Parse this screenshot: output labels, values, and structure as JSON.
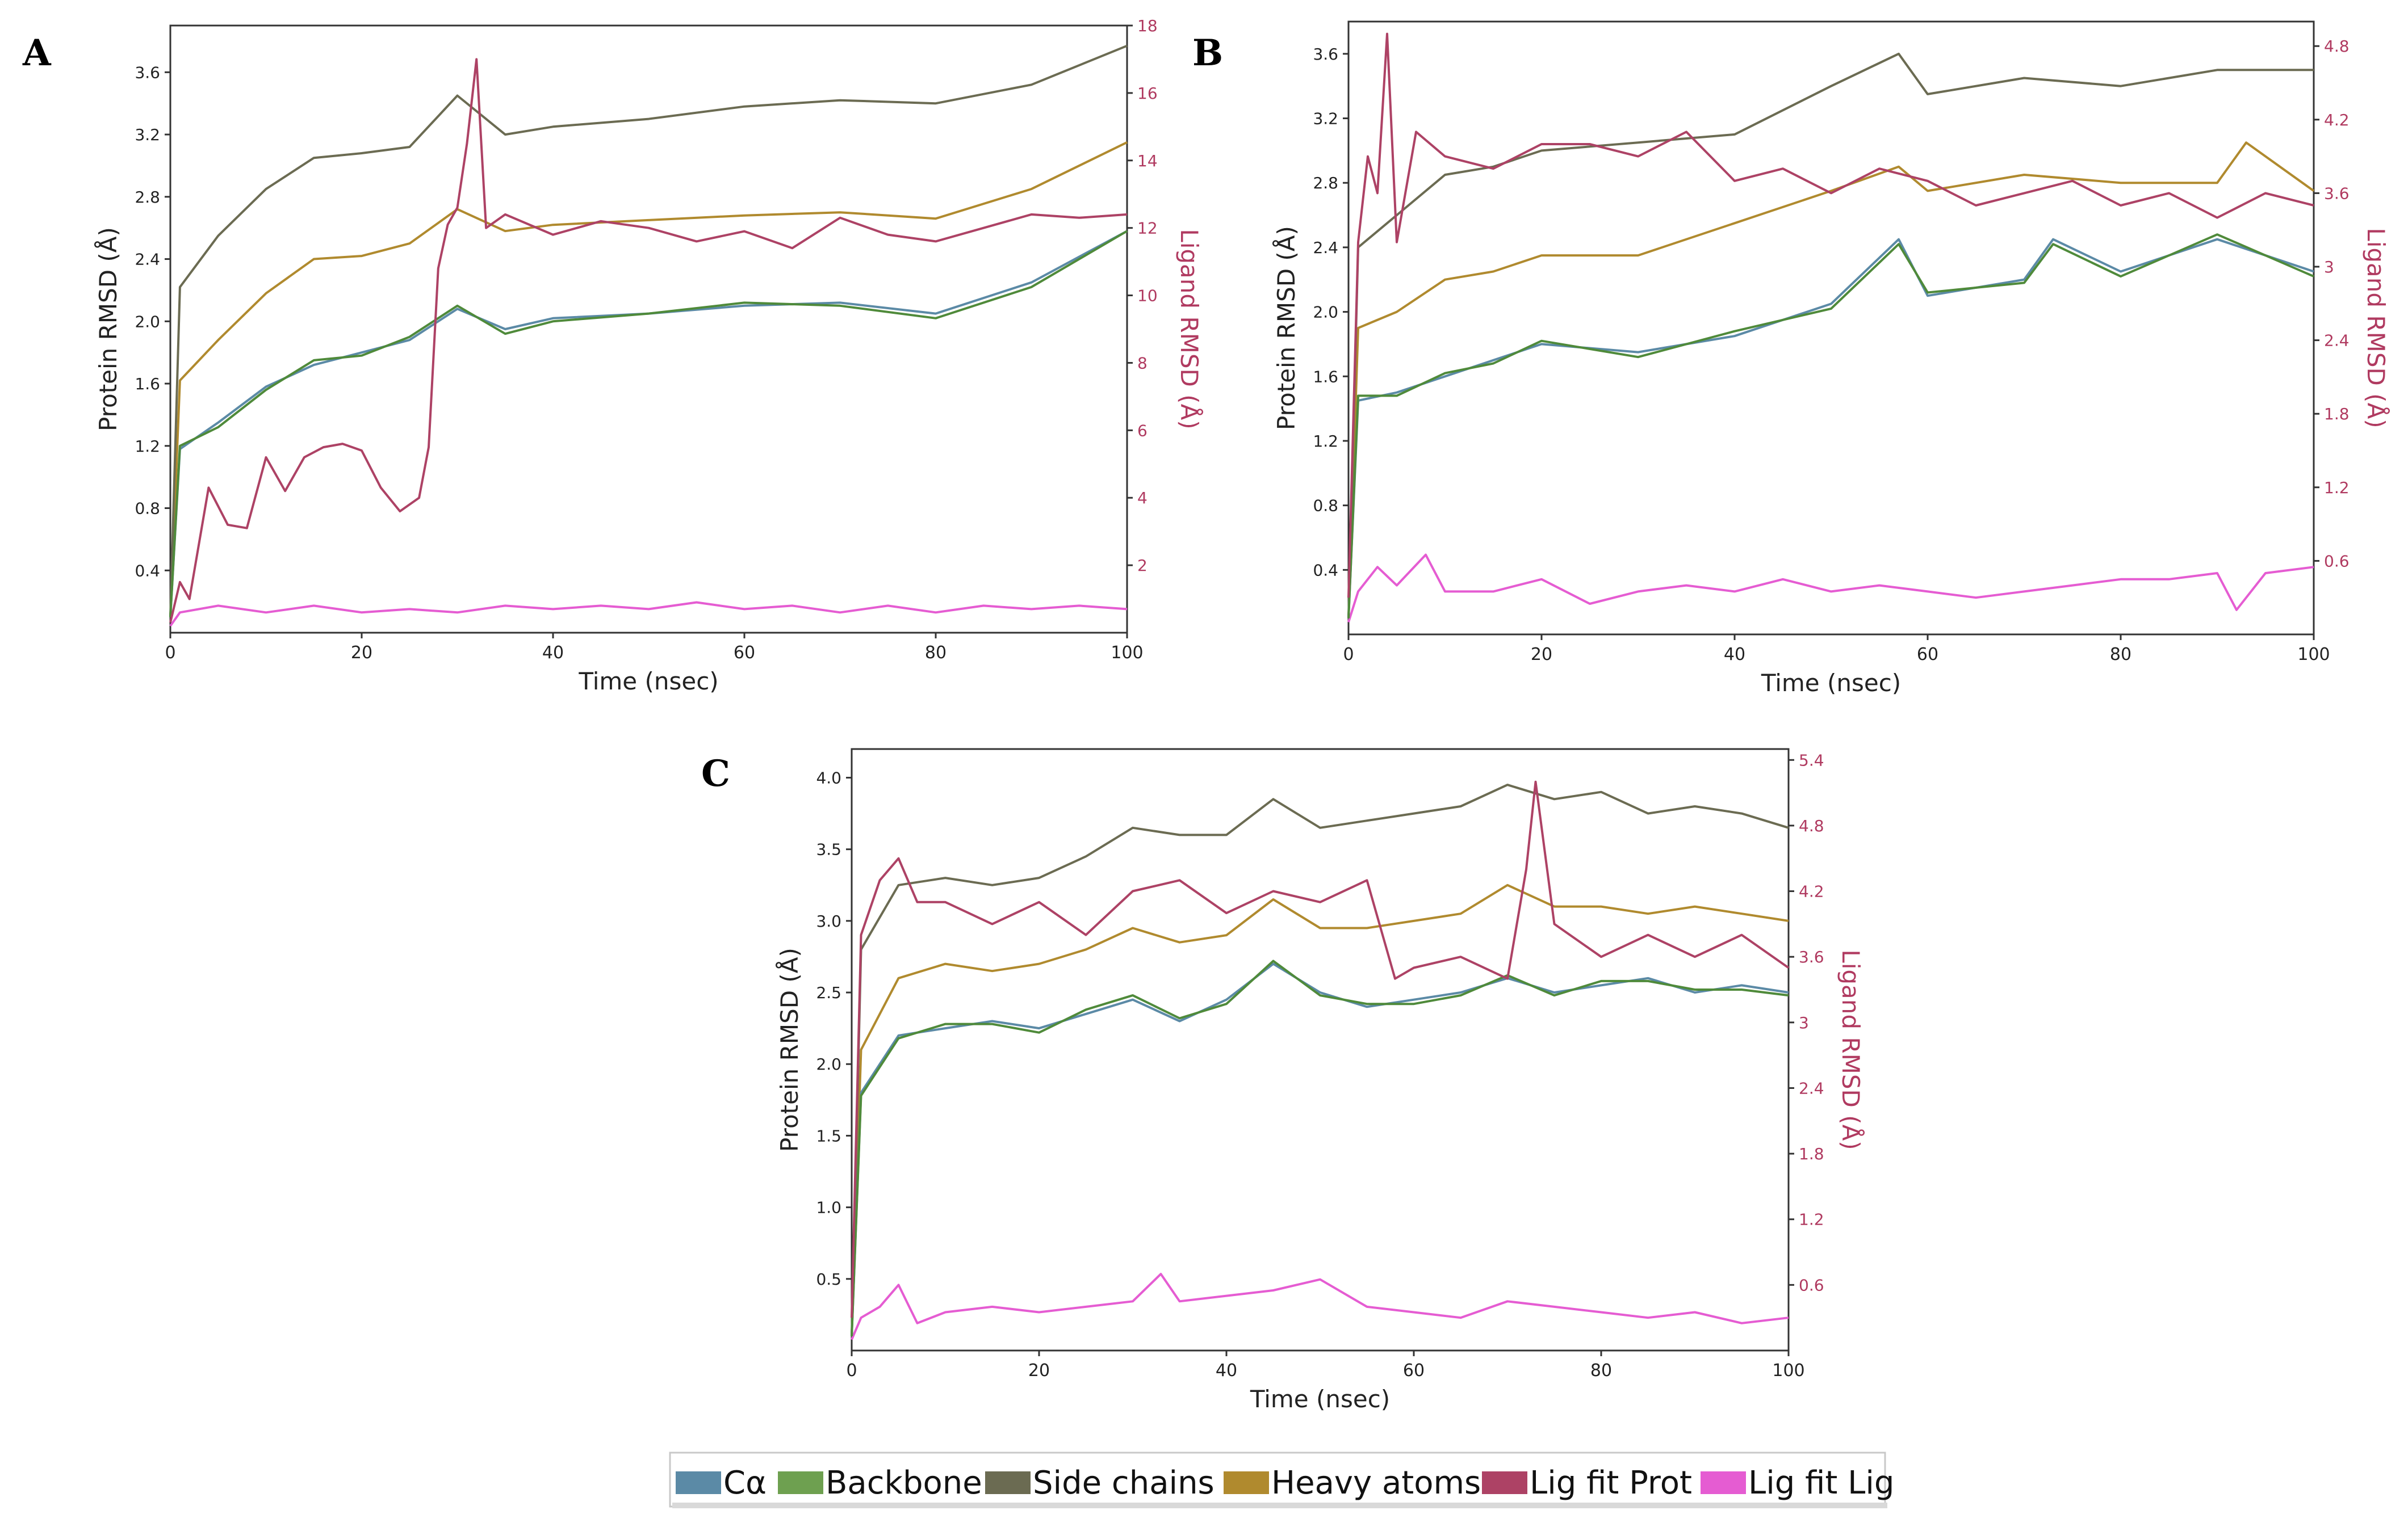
{
  "chart_data": [
    {
      "type": "line",
      "panel": "A",
      "xlabel": "Time (nsec)",
      "ylabel": "Protein RMSD (Å)",
      "y2label": "Ligand RMSD (Å)",
      "xlim": [
        0,
        100
      ],
      "ylim": [
        0,
        3.9
      ],
      "y2lim": [
        0,
        18
      ],
      "xticks": [
        0,
        20,
        40,
        60,
        80,
        100
      ],
      "yticks": [
        0.4,
        0.8,
        1.2,
        1.6,
        2.0,
        2.4,
        2.8,
        3.2,
        3.6
      ],
      "y2ticks": [
        2,
        4,
        6,
        8,
        10,
        12,
        14,
        16,
        18
      ],
      "series": [
        {
          "name": "Cα",
          "axis": "left",
          "x": [
            0,
            1,
            5,
            10,
            15,
            20,
            25,
            30,
            35,
            40,
            50,
            60,
            70,
            80,
            90,
            100
          ],
          "values": [
            0.1,
            1.18,
            1.35,
            1.58,
            1.72,
            1.8,
            1.88,
            2.08,
            1.95,
            2.02,
            2.05,
            2.1,
            2.12,
            2.05,
            2.25,
            2.58
          ]
        },
        {
          "name": "Backbone",
          "axis": "left",
          "x": [
            0,
            1,
            5,
            10,
            15,
            20,
            25,
            30,
            35,
            40,
            50,
            60,
            70,
            80,
            90,
            100
          ],
          "values": [
            0.1,
            1.2,
            1.32,
            1.56,
            1.75,
            1.78,
            1.9,
            2.1,
            1.92,
            2.0,
            2.05,
            2.12,
            2.1,
            2.02,
            2.22,
            2.58
          ]
        },
        {
          "name": "Side chains",
          "axis": "left",
          "x": [
            0,
            1,
            5,
            10,
            15,
            20,
            25,
            30,
            35,
            40,
            50,
            60,
            70,
            80,
            90,
            100
          ],
          "values": [
            0.1,
            2.22,
            2.55,
            2.85,
            3.05,
            3.08,
            3.12,
            3.45,
            3.2,
            3.25,
            3.3,
            3.38,
            3.42,
            3.4,
            3.52,
            3.77
          ]
        },
        {
          "name": "Heavy atoms",
          "axis": "left",
          "x": [
            0,
            1,
            5,
            10,
            15,
            20,
            25,
            30,
            35,
            40,
            50,
            60,
            70,
            80,
            90,
            100
          ],
          "values": [
            0.1,
            1.62,
            1.88,
            2.18,
            2.4,
            2.42,
            2.5,
            2.72,
            2.58,
            2.62,
            2.65,
            2.68,
            2.7,
            2.66,
            2.85,
            3.15
          ]
        },
        {
          "name": "Lig fit Prot",
          "axis": "right",
          "x": [
            0,
            1,
            2,
            4,
            6,
            8,
            10,
            12,
            14,
            16,
            18,
            20,
            22,
            24,
            26,
            27,
            28,
            29,
            30,
            31,
            32,
            33,
            35,
            40,
            45,
            50,
            55,
            60,
            65,
            70,
            75,
            80,
            85,
            90,
            95,
            100
          ],
          "values": [
            0.3,
            1.5,
            1.0,
            4.3,
            3.2,
            3.1,
            5.2,
            4.2,
            5.2,
            5.5,
            5.6,
            5.4,
            4.3,
            3.6,
            4.0,
            5.5,
            10.8,
            12.1,
            12.6,
            14.5,
            17.0,
            12.0,
            12.4,
            11.8,
            12.2,
            12.0,
            11.6,
            11.9,
            11.4,
            12.3,
            11.8,
            11.6,
            12.0,
            12.4,
            12.3,
            12.4
          ]
        },
        {
          "name": "Lig fit Lig",
          "axis": "right",
          "x": [
            0,
            1,
            5,
            10,
            15,
            20,
            25,
            30,
            35,
            40,
            45,
            50,
            55,
            60,
            65,
            70,
            75,
            80,
            85,
            90,
            95,
            100
          ],
          "values": [
            0.2,
            0.6,
            0.8,
            0.6,
            0.8,
            0.6,
            0.7,
            0.6,
            0.8,
            0.7,
            0.8,
            0.7,
            0.9,
            0.7,
            0.8,
            0.6,
            0.8,
            0.6,
            0.8,
            0.7,
            0.8,
            0.7
          ]
        }
      ]
    },
    {
      "type": "line",
      "panel": "B",
      "xlabel": "Time (nsec)",
      "ylabel": "Protein RMSD (Å)",
      "y2label": "Ligand RMSD (Å)",
      "xlim": [
        0,
        100
      ],
      "ylim": [
        0,
        3.8
      ],
      "y2lim": [
        0,
        5.0
      ],
      "xticks": [
        0,
        20,
        40,
        60,
        80,
        100
      ],
      "yticks": [
        0.4,
        0.8,
        1.2,
        1.6,
        2.0,
        2.4,
        2.8,
        3.2,
        3.6
      ],
      "y2ticks": [
        0.6,
        1.2,
        1.8,
        2.4,
        3.0,
        3.6,
        4.2,
        4.8
      ],
      "series": [
        {
          "name": "Cα",
          "axis": "left",
          "x": [
            0,
            1,
            5,
            10,
            15,
            20,
            30,
            40,
            50,
            57,
            60,
            70,
            73,
            80,
            90,
            100
          ],
          "values": [
            0.1,
            1.45,
            1.5,
            1.6,
            1.7,
            1.8,
            1.75,
            1.85,
            2.05,
            2.45,
            2.1,
            2.2,
            2.45,
            2.25,
            2.45,
            2.25
          ]
        },
        {
          "name": "Backbone",
          "axis": "left",
          "x": [
            0,
            1,
            5,
            10,
            15,
            20,
            30,
            40,
            50,
            57,
            60,
            70,
            73,
            80,
            90,
            100
          ],
          "values": [
            0.1,
            1.48,
            1.48,
            1.62,
            1.68,
            1.82,
            1.72,
            1.88,
            2.02,
            2.42,
            2.12,
            2.18,
            2.42,
            2.22,
            2.48,
            2.22
          ]
        },
        {
          "name": "Side chains",
          "axis": "left",
          "x": [
            0,
            1,
            5,
            10,
            15,
            20,
            30,
            40,
            50,
            57,
            60,
            70,
            80,
            90,
            100
          ],
          "values": [
            0.1,
            2.4,
            2.6,
            2.85,
            2.9,
            3.0,
            3.05,
            3.1,
            3.4,
            3.6,
            3.35,
            3.45,
            3.4,
            3.5,
            3.5
          ]
        },
        {
          "name": "Heavy atoms",
          "axis": "left",
          "x": [
            0,
            1,
            5,
            10,
            15,
            20,
            30,
            40,
            50,
            57,
            60,
            70,
            80,
            90,
            93,
            100
          ],
          "values": [
            0.1,
            1.9,
            2.0,
            2.2,
            2.25,
            2.35,
            2.35,
            2.55,
            2.75,
            2.9,
            2.75,
            2.85,
            2.8,
            2.8,
            3.05,
            2.75
          ]
        },
        {
          "name": "Lig fit Prot",
          "axis": "right",
          "x": [
            0,
            1,
            2,
            3,
            4,
            5,
            7,
            10,
            15,
            20,
            25,
            30,
            35,
            40,
            45,
            50,
            55,
            60,
            65,
            70,
            75,
            80,
            85,
            90,
            95,
            100
          ],
          "values": [
            0.3,
            3.2,
            3.9,
            3.6,
            4.9,
            3.2,
            4.1,
            3.9,
            3.8,
            4.0,
            4.0,
            3.9,
            4.1,
            3.7,
            3.8,
            3.6,
            3.8,
            3.7,
            3.5,
            3.6,
            3.7,
            3.5,
            3.6,
            3.4,
            3.6,
            3.5
          ]
        },
        {
          "name": "Lig fit Lig",
          "axis": "right",
          "x": [
            0,
            1,
            3,
            5,
            8,
            10,
            15,
            20,
            25,
            30,
            35,
            40,
            45,
            50,
            55,
            60,
            65,
            70,
            75,
            80,
            85,
            90,
            92,
            95,
            100
          ],
          "values": [
            0.1,
            0.35,
            0.55,
            0.4,
            0.65,
            0.35,
            0.35,
            0.45,
            0.25,
            0.35,
            0.4,
            0.35,
            0.45,
            0.35,
            0.4,
            0.35,
            0.3,
            0.35,
            0.4,
            0.45,
            0.45,
            0.5,
            0.2,
            0.5,
            0.55
          ]
        }
      ]
    },
    {
      "type": "line",
      "panel": "C",
      "xlabel": "Time (nsec)",
      "ylabel": "Protein RMSD (Å)",
      "y2label": "Ligand RMSD (Å)",
      "xlim": [
        0,
        100
      ],
      "ylim": [
        0,
        4.2
      ],
      "y2lim": [
        0,
        5.5
      ],
      "xticks": [
        0,
        20,
        40,
        60,
        80,
        100
      ],
      "yticks": [
        0.5,
        1.0,
        1.5,
        2.0,
        2.5,
        3.0,
        3.5,
        4.0
      ],
      "y2ticks": [
        0.6,
        1.2,
        1.8,
        2.4,
        3.0,
        3.6,
        4.2,
        4.8,
        5.4
      ],
      "series": [
        {
          "name": "Cα",
          "axis": "left",
          "x": [
            0,
            1,
            5,
            10,
            15,
            20,
            25,
            30,
            35,
            40,
            45,
            50,
            55,
            60,
            65,
            70,
            75,
            80,
            85,
            90,
            95,
            100
          ],
          "values": [
            0.1,
            1.8,
            2.2,
            2.25,
            2.3,
            2.25,
            2.35,
            2.45,
            2.3,
            2.45,
            2.7,
            2.5,
            2.4,
            2.45,
            2.5,
            2.6,
            2.5,
            2.55,
            2.6,
            2.5,
            2.55,
            2.5
          ]
        },
        {
          "name": "Backbone",
          "axis": "left",
          "x": [
            0,
            1,
            5,
            10,
            15,
            20,
            25,
            30,
            35,
            40,
            45,
            50,
            55,
            60,
            65,
            70,
            75,
            80,
            85,
            90,
            95,
            100
          ],
          "values": [
            0.1,
            1.78,
            2.18,
            2.28,
            2.28,
            2.22,
            2.38,
            2.48,
            2.32,
            2.42,
            2.72,
            2.48,
            2.42,
            2.42,
            2.48,
            2.62,
            2.48,
            2.58,
            2.58,
            2.52,
            2.52,
            2.48
          ]
        },
        {
          "name": "Side chains",
          "axis": "left",
          "x": [
            0,
            1,
            5,
            10,
            15,
            20,
            25,
            30,
            35,
            40,
            45,
            50,
            55,
            60,
            65,
            70,
            75,
            80,
            85,
            90,
            95,
            100
          ],
          "values": [
            0.1,
            2.8,
            3.25,
            3.3,
            3.25,
            3.3,
            3.45,
            3.65,
            3.6,
            3.6,
            3.85,
            3.65,
            3.7,
            3.75,
            3.8,
            3.95,
            3.85,
            3.9,
            3.75,
            3.8,
            3.75,
            3.65
          ]
        },
        {
          "name": "Heavy atoms",
          "axis": "left",
          "x": [
            0,
            1,
            5,
            10,
            15,
            20,
            25,
            30,
            35,
            40,
            45,
            50,
            55,
            60,
            65,
            70,
            75,
            80,
            85,
            90,
            95,
            100
          ],
          "values": [
            0.1,
            2.1,
            2.6,
            2.7,
            2.65,
            2.7,
            2.8,
            2.95,
            2.85,
            2.9,
            3.15,
            2.95,
            2.95,
            3.0,
            3.05,
            3.25,
            3.1,
            3.1,
            3.05,
            3.1,
            3.05,
            3.0
          ]
        },
        {
          "name": "Lig fit Prot",
          "axis": "right",
          "x": [
            0,
            1,
            3,
            5,
            7,
            10,
            15,
            20,
            25,
            30,
            35,
            40,
            45,
            50,
            55,
            58,
            60,
            65,
            70,
            72,
            73,
            75,
            80,
            85,
            90,
            95,
            100
          ],
          "values": [
            0.3,
            3.8,
            4.3,
            4.5,
            4.1,
            4.1,
            3.9,
            4.1,
            3.8,
            4.2,
            4.3,
            4.0,
            4.2,
            4.1,
            4.3,
            3.4,
            3.5,
            3.6,
            3.4,
            4.4,
            5.2,
            3.9,
            3.6,
            3.8,
            3.6,
            3.8,
            3.5
          ]
        },
        {
          "name": "Lig fit Lig",
          "axis": "right",
          "x": [
            0,
            1,
            3,
            5,
            7,
            10,
            15,
            20,
            25,
            30,
            33,
            35,
            40,
            45,
            50,
            55,
            60,
            65,
            70,
            75,
            80,
            85,
            90,
            95,
            100
          ],
          "values": [
            0.1,
            0.3,
            0.4,
            0.6,
            0.25,
            0.35,
            0.4,
            0.35,
            0.4,
            0.45,
            0.7,
            0.45,
            0.5,
            0.55,
            0.65,
            0.4,
            0.35,
            0.3,
            0.45,
            0.4,
            0.35,
            0.3,
            0.35,
            0.25,
            0.3
          ]
        }
      ]
    }
  ],
  "legend": {
    "items": [
      {
        "label": "Cα",
        "color": "#5b8aa6"
      },
      {
        "label": "Backbone",
        "color": "#6ea050"
      },
      {
        "label": "Side chains",
        "color": "#6b6b52"
      },
      {
        "label": "Heavy atoms",
        "color": "#b08a2e"
      },
      {
        "label": "Lig fit Prot",
        "color": "#ad4265"
      },
      {
        "label": "Lig fit Lig",
        "color": "#e55cd2"
      }
    ]
  },
  "colors": {
    "Cα": "#5b8aa6",
    "Backbone": "#4f8a3a",
    "Side chains": "#6b6b52",
    "Heavy atoms": "#b08a2e",
    "Lig fit Prot": "#ad4265",
    "Lig fit Lig": "#e55cd2",
    "right_axis": "#b03a60"
  }
}
